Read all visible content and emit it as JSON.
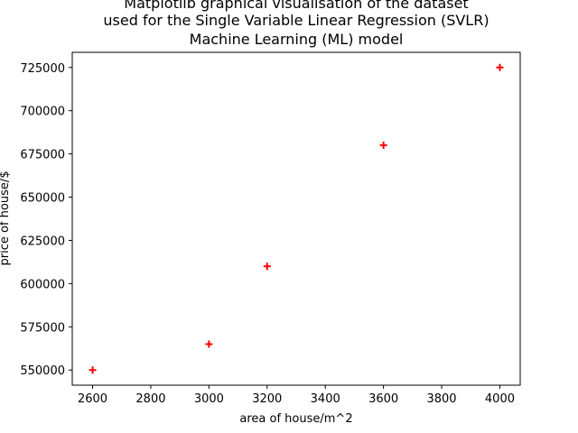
{
  "chart_data": {
    "type": "scatter",
    "title_lines": [
      "Matplotlib graphical visualisation of the dataset",
      "used for the Single Variable Linear Regression (SVLR)",
      "Machine Learning (ML) model"
    ],
    "xlabel": "area of house/m^2",
    "ylabel": "price of house/$",
    "xlim": [
      2530,
      4070
    ],
    "ylim": [
      541250,
      733750
    ],
    "xticks": [
      2600,
      2800,
      3000,
      3200,
      3400,
      3600,
      3800,
      4000
    ],
    "yticks": [
      550000,
      575000,
      600000,
      625000,
      650000,
      675000,
      700000,
      725000
    ],
    "marker": "+",
    "marker_color": "#ff0000",
    "points": [
      {
        "x": 2600,
        "y": 550000
      },
      {
        "x": 3000,
        "y": 565000
      },
      {
        "x": 3200,
        "y": 610000
      },
      {
        "x": 3600,
        "y": 680000
      },
      {
        "x": 4000,
        "y": 725000
      }
    ],
    "grid": false,
    "legend": "none"
  }
}
